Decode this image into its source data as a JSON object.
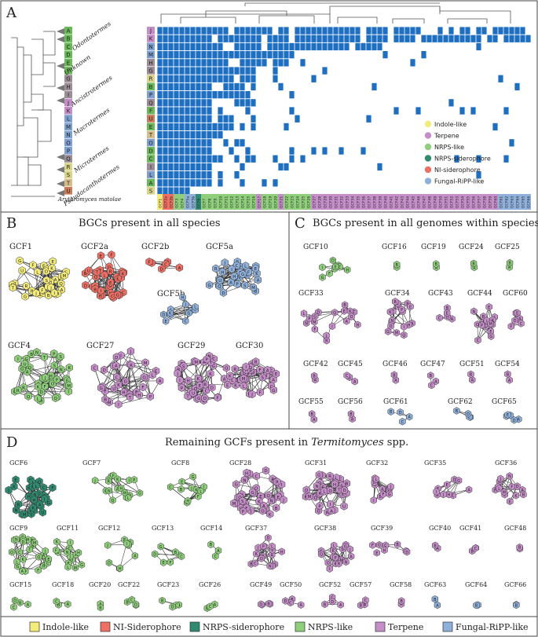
{
  "panel_a": {
    "letter": "A",
    "species_letters": [
      "A",
      "B",
      "C",
      "D",
      "E",
      "F",
      "G",
      "H",
      "I",
      "J",
      "K",
      "L",
      "M",
      "N",
      "O",
      "P",
      "Q",
      "R",
      "S",
      "T",
      "U"
    ],
    "species_colors": [
      "#6bb85a",
      "#6bb85a",
      "#6bb85a",
      "#6bb85a",
      "#6bb85a",
      "#6bb85a",
      "#9a8d96",
      "#9a8d96",
      "#9a8d96",
      "#c38ec6",
      "#c38ec6",
      "#7e9fd0",
      "#7e9fd0",
      "#7e9fd0",
      "#7e9fd0",
      "#7e9fd0",
      "#9a8d96",
      "#d7d48a",
      "#d7d48a",
      "#d4bd8a",
      "#c87a5a"
    ],
    "clade_labels": [
      "Odontotermes",
      "Unknown",
      "Ancistrotermes",
      "Macrotermes",
      "Microtermes",
      "Pseudacanthotermes"
    ],
    "outgroup": "Arythromyces matolae",
    "row_letters": [
      "J",
      "K",
      "N",
      "M",
      "H",
      "G",
      "R",
      "B",
      "P",
      "Q",
      "F",
      "U",
      "E",
      "T",
      "O",
      "D",
      "C",
      "I",
      "L",
      "A",
      "S"
    ],
    "row_colors": [
      "#c38ec6",
      "#c38ec6",
      "#7e9fd0",
      "#7e9fd0",
      "#9a8d96",
      "#9a8d96",
      "#d7d48a",
      "#6bb85a",
      "#7e9fd0",
      "#9a8d96",
      "#6bb85a",
      "#c87a5a",
      "#6bb85a",
      "#d4bd8a",
      "#7e9fd0",
      "#6bb85a",
      "#6bb85a",
      "#9a8d96",
      "#7e9fd0",
      "#6bb85a",
      "#d7d48a"
    ],
    "gcf_columns": [
      "GCF1",
      "GCF2a",
      "GCF2b",
      "GCF3",
      "GCF4",
      "GCF5a",
      "GCF5b",
      "GCF6",
      "GCF7",
      "GCF8",
      "GCF9",
      "GCF10",
      "GCF11",
      "GCF12",
      "GCF13",
      "GCF14",
      "GCF15",
      "GCF16",
      "GCF17",
      "GCF18",
      "GCF19",
      "GCF20",
      "GCF21",
      "GCF22",
      "GCF23",
      "GCF24",
      "GCF25",
      "GCF26",
      "GCF27",
      "GCF28",
      "GCF29",
      "GCF30",
      "GCF31",
      "GCF32",
      "GCF33",
      "GCF34",
      "GCF35",
      "GCF36",
      "GCF37",
      "GCF38",
      "GCF39",
      "GCF40",
      "GCF41",
      "GCF42",
      "GCF43",
      "GCF44",
      "GCF45",
      "GCF46",
      "GCF47",
      "GCF48",
      "GCF49",
      "GCF50",
      "GCF51",
      "GCF52",
      "GCF53",
      "GCF54",
      "GCF55",
      "GCF56",
      "GCF57",
      "GCF58",
      "GCF59",
      "GCF60",
      "GCF61",
      "GCF62",
      "GCF63",
      "GCF64",
      "GCF65",
      "GCF66"
    ],
    "column_classes": [
      "Indole-like",
      "NI-Siderophore",
      "NI-Siderophore",
      "NRPS-like",
      "NRPS-like",
      "Fungal-RiPP-like",
      "Fungal-RiPP-like",
      "NRPS-siderophore",
      "NRPS-like",
      "NRPS-like",
      "NRPS-like",
      "NRPS-like",
      "NRPS-like",
      "NRPS-like",
      "NRPS-like",
      "NRPS-like",
      "NRPS-like",
      "NRPS-like",
      "Terpene",
      "NRPS-like",
      "NRPS-like",
      "NRPS-like",
      "Terpene",
      "NRPS-like",
      "NRPS-like",
      "NRPS-like",
      "NRPS-like",
      "NRPS-like",
      "Terpene",
      "Terpene",
      "Terpene",
      "Terpene",
      "Terpene",
      "Terpene",
      "Terpene",
      "Terpene",
      "Terpene",
      "Terpene",
      "Terpene",
      "Terpene",
      "Terpene",
      "Terpene",
      "Terpene",
      "Terpene",
      "Terpene",
      "Terpene",
      "Terpene",
      "Terpene",
      "Terpene",
      "Terpene",
      "Terpene",
      "Terpene",
      "Terpene",
      "Terpene",
      "Terpene",
      "Terpene",
      "Terpene",
      "Terpene",
      "Terpene",
      "Terpene",
      "Terpene",
      "Terpene",
      "Fungal-RiPP-like",
      "Fungal-RiPP-like",
      "Fungal-RiPP-like",
      "Fungal-RiPP-like",
      "Fungal-RiPP-like",
      "Fungal-RiPP-like"
    ],
    "legend": [
      {
        "label": "Indole-like",
        "color": "#f4ec7a"
      },
      {
        "label": "Terpene",
        "color": "#c58ec8"
      },
      {
        "label": "NRPS-like",
        "color": "#8fcf7c"
      },
      {
        "label": "NRPS-siderophore",
        "color": "#2f8a6f"
      },
      {
        "label": "NI-siderophore",
        "color": "#ef6f64"
      },
      {
        "label": "Fungal-RiPP-like",
        "color": "#8fb0da"
      }
    ]
  },
  "panel_b": {
    "letter": "B",
    "title": "BGCs present in all species",
    "gcfs": [
      {
        "name": "GCF1",
        "color": "#f4ec7a"
      },
      {
        "name": "GCF2a",
        "color": "#ef6f64"
      },
      {
        "name": "GCF2b",
        "color": "#ef6f64"
      },
      {
        "name": "GCF5a",
        "color": "#8fb0da"
      },
      {
        "name": "GCF5b",
        "color": "#8fb0da"
      },
      {
        "name": "GCF4",
        "color": "#8fcf7c"
      },
      {
        "name": "GCF27",
        "color": "#c58ec8"
      },
      {
        "name": "GCF29",
        "color": "#c58ec8"
      },
      {
        "name": "GCF30",
        "color": "#c58ec8"
      }
    ]
  },
  "panel_c": {
    "letter": "C",
    "title": "BGCs present in all genomes within species",
    "gcfs": [
      {
        "name": "GCF10",
        "color": "#8fcf7c"
      },
      {
        "name": "GCF16",
        "color": "#8fcf7c"
      },
      {
        "name": "GCF19",
        "color": "#8fcf7c"
      },
      {
        "name": "GCF24",
        "color": "#8fcf7c"
      },
      {
        "name": "GCF25",
        "color": "#8fcf7c"
      },
      {
        "name": "GCF33",
        "color": "#c58ec8"
      },
      {
        "name": "GCF34",
        "color": "#c58ec8"
      },
      {
        "name": "GCF43",
        "color": "#c58ec8"
      },
      {
        "name": "GCF44",
        "color": "#c58ec8"
      },
      {
        "name": "GCF60",
        "color": "#c58ec8"
      },
      {
        "name": "GCF42",
        "color": "#c58ec8"
      },
      {
        "name": "GCF45",
        "color": "#c58ec8"
      },
      {
        "name": "GCF46",
        "color": "#c58ec8"
      },
      {
        "name": "GCF47",
        "color": "#c58ec8"
      },
      {
        "name": "GCF51",
        "color": "#c58ec8"
      },
      {
        "name": "GCF54",
        "color": "#c58ec8"
      },
      {
        "name": "GCF55",
        "color": "#c58ec8"
      },
      {
        "name": "GCF56",
        "color": "#c58ec8"
      },
      {
        "name": "GCF61",
        "color": "#8fb0da"
      },
      {
        "name": "GCF62",
        "color": "#8fb0da"
      },
      {
        "name": "GCF65",
        "color": "#8fb0da"
      }
    ]
  },
  "panel_d": {
    "letter": "D",
    "title_prefix": "Remaining GCFs present in ",
    "title_genus": "Termitomyces",
    "title_suffix": " spp.",
    "gcfs": [
      {
        "name": "GCF6",
        "color": "#2f8a6f"
      },
      {
        "name": "GCF7",
        "color": "#8fcf7c"
      },
      {
        "name": "GCF8",
        "color": "#8fcf7c"
      },
      {
        "name": "GCF28",
        "color": "#c58ec8"
      },
      {
        "name": "GCF31",
        "color": "#c58ec8"
      },
      {
        "name": "GCF32",
        "color": "#c58ec8"
      },
      {
        "name": "GCF35",
        "color": "#c58ec8"
      },
      {
        "name": "GCF36",
        "color": "#c58ec8"
      },
      {
        "name": "GCF9",
        "color": "#8fcf7c"
      },
      {
        "name": "GCF11",
        "color": "#8fcf7c"
      },
      {
        "name": "GCF12",
        "color": "#8fcf7c"
      },
      {
        "name": "GCF13",
        "color": "#8fcf7c"
      },
      {
        "name": "GCF14",
        "color": "#8fcf7c"
      },
      {
        "name": "GCF37",
        "color": "#c58ec8"
      },
      {
        "name": "GCF38",
        "color": "#c58ec8"
      },
      {
        "name": "GCF39",
        "color": "#c58ec8"
      },
      {
        "name": "GCF40",
        "color": "#c58ec8"
      },
      {
        "name": "GCF41",
        "color": "#c58ec8"
      },
      {
        "name": "GCF48",
        "color": "#c58ec8"
      },
      {
        "name": "GCF15",
        "color": "#8fcf7c"
      },
      {
        "name": "GCF18",
        "color": "#8fcf7c"
      },
      {
        "name": "GCF20",
        "color": "#8fcf7c"
      },
      {
        "name": "GCF22",
        "color": "#8fcf7c"
      },
      {
        "name": "GCF23",
        "color": "#8fcf7c"
      },
      {
        "name": "GCF26",
        "color": "#8fcf7c"
      },
      {
        "name": "GCF49",
        "color": "#c58ec8"
      },
      {
        "name": "GCF50",
        "color": "#c58ec8"
      },
      {
        "name": "GCF52",
        "color": "#c58ec8"
      },
      {
        "name": "GCF57",
        "color": "#c58ec8"
      },
      {
        "name": "GCF58",
        "color": "#c58ec8"
      },
      {
        "name": "GCF63",
        "color": "#8fb0da"
      },
      {
        "name": "GCF64",
        "color": "#8fb0da"
      },
      {
        "name": "GCF66",
        "color": "#8fb0da"
      }
    ]
  },
  "bottom_legend": [
    {
      "label": "Indole-like",
      "color": "#f4ec7a"
    },
    {
      "label": "NI-Siderophore",
      "color": "#ef6f64"
    },
    {
      "label": "NRPS-siderophore",
      "color": "#2f8a6f"
    },
    {
      "label": "NRPS-like",
      "color": "#8fcf7c"
    },
    {
      "label": "Terpene",
      "color": "#c58ec8"
    },
    {
      "label": "Fungal-RiPP-like",
      "color": "#8fb0da"
    }
  ],
  "colors": {
    "presence": "#1f6fc1",
    "border": "#333333",
    "edge": "#333333"
  }
}
